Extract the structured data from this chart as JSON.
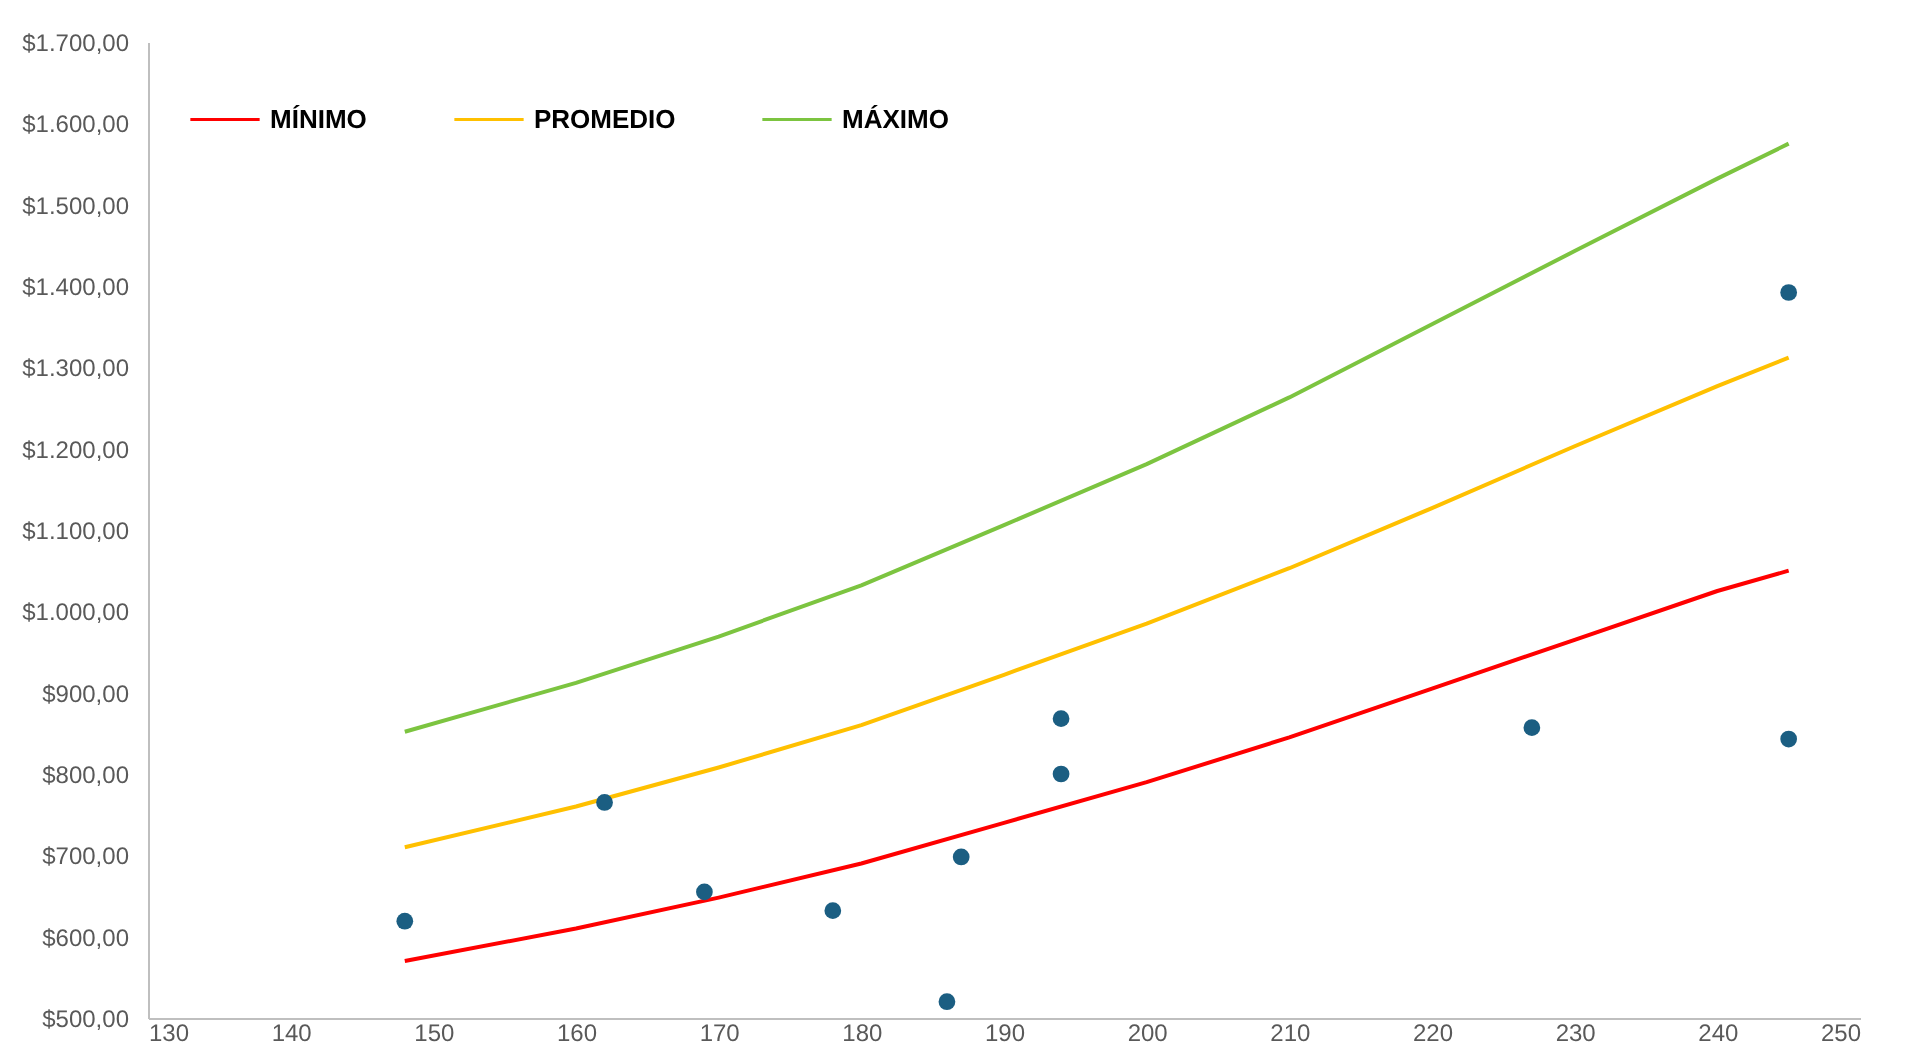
{
  "chart_data": {
    "type": "line",
    "legend": "top left",
    "grid": false,
    "marker": "none",
    "line_style": "solid",
    "xlim": [
      130,
      250
    ],
    "xticks": [
      130,
      140,
      150,
      160,
      170,
      180,
      190,
      200,
      210,
      220,
      230,
      240,
      250
    ],
    "ylim": [
      500,
      1700
    ],
    "yticks": [
      {
        "value": 500,
        "label": "$500,00"
      },
      {
        "value": 600,
        "label": "$600,00"
      },
      {
        "value": 700,
        "label": "$700,00"
      },
      {
        "value": 800,
        "label": "$800,00"
      },
      {
        "value": 900,
        "label": "$900,00"
      },
      {
        "value": 1000,
        "label": "$1.000,00"
      },
      {
        "value": 1100,
        "label": "$1.100,00"
      },
      {
        "value": 1200,
        "label": "$1.200,00"
      },
      {
        "value": 1300,
        "label": "$1.300,00"
      },
      {
        "value": 1400,
        "label": "$1.400,00"
      },
      {
        "value": 1500,
        "label": "$1.500,00"
      },
      {
        "value": 1600,
        "label": "$1.600,00"
      },
      {
        "value": 1700,
        "label": "$1.700,00"
      }
    ],
    "series": [
      {
        "name": "MÍNIMO",
        "color": "#ff0000",
        "x": [
          148,
          160,
          170,
          180,
          190,
          200,
          210,
          220,
          230,
          240,
          245
        ],
        "values": [
          570,
          610,
          648,
          690,
          740,
          790,
          845,
          905,
          965,
          1025,
          1050
        ]
      },
      {
        "name": "PROMEDIO",
        "color": "#ffc000",
        "x": [
          148,
          160,
          170,
          180,
          190,
          200,
          210,
          220,
          230,
          240,
          245
        ],
        "values": [
          710,
          760,
          808,
          860,
          922,
          985,
          1053,
          1127,
          1203,
          1277,
          1312
        ]
      },
      {
        "name": "MÁXIMO",
        "color": "#7cc440",
        "x": [
          148,
          160,
          170,
          180,
          190,
          200,
          210,
          220,
          230,
          240,
          245
        ],
        "values": [
          852,
          912,
          969,
          1032,
          1106,
          1181,
          1263,
          1353,
          1443,
          1532,
          1575
        ]
      },
      {
        "type": "scatter",
        "marker": "circle",
        "color": "#1b5e82",
        "x": [
          148,
          162,
          169,
          178,
          186,
          187,
          194,
          194,
          227,
          245,
          245
        ],
        "values": [
          619,
          765,
          655,
          632,
          520,
          698,
          868,
          800,
          857,
          843,
          1392
        ]
      }
    ]
  }
}
